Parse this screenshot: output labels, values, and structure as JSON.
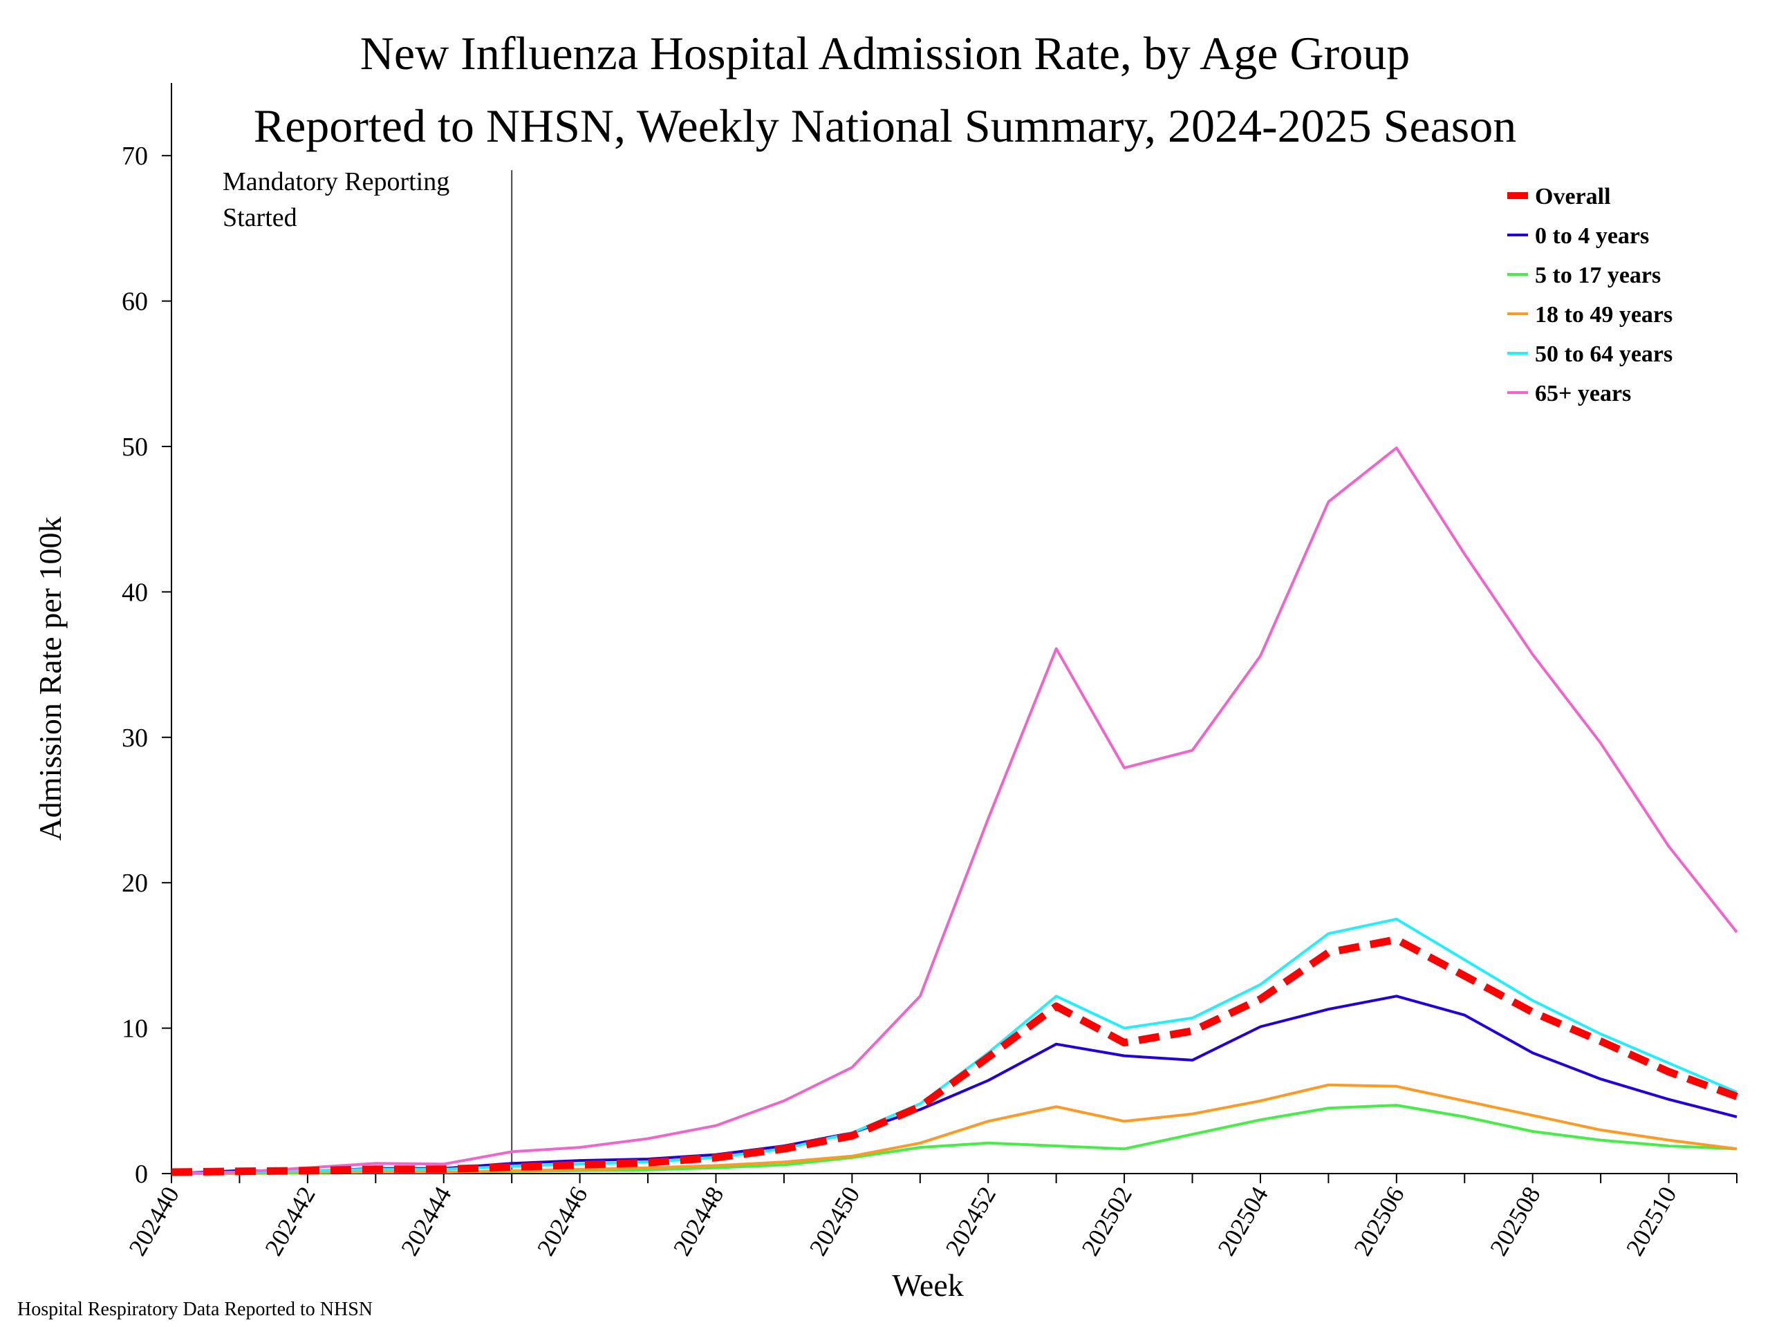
{
  "chart_data": {
    "type": "line",
    "title": "New Influenza Hospital Admission Rate, by Age Group",
    "subtitle": "Reported to NHSN, Weekly National Summary, 2024-2025 Season",
    "xlabel": "Week",
    "ylabel": "Admission Rate per 100k",
    "ylim": [
      0,
      75
    ],
    "yticks": [
      0,
      10,
      20,
      30,
      40,
      50,
      60,
      70
    ],
    "x": [
      "202440",
      "202441",
      "202442",
      "202443",
      "202444",
      "202445",
      "202446",
      "202447",
      "202448",
      "202449",
      "202450",
      "202451",
      "202452",
      "202501",
      "202502",
      "202503",
      "202504",
      "202505",
      "202506",
      "202507",
      "202508",
      "202509",
      "202510",
      "202511"
    ],
    "xtick_labels": [
      "202440",
      "202442",
      "202444",
      "202446",
      "202448",
      "202450",
      "202452",
      "202502",
      "202504",
      "202506",
      "202508",
      "202510"
    ],
    "grid": false,
    "legend_position": "top-right",
    "annotation": {
      "text_line1": "Mandatory Reporting",
      "text_line2": "Started",
      "x": "202445"
    },
    "series": [
      {
        "name": "Overall",
        "color": "#ff0000",
        "style": "dashed-thick",
        "values": [
          0.1,
          0.15,
          0.2,
          0.3,
          0.3,
          0.45,
          0.6,
          0.75,
          1.1,
          1.7,
          2.6,
          4.6,
          8.0,
          11.5,
          9.0,
          9.8,
          12.0,
          15.2,
          16.1,
          13.6,
          11.1,
          9.1,
          7.0,
          5.3
        ]
      },
      {
        "name": "0 to 4 years",
        "color": "#2200dd",
        "style": "solid",
        "values": [
          0.0,
          0.2,
          0.15,
          0.35,
          0.35,
          0.7,
          0.9,
          1.0,
          1.3,
          1.9,
          2.8,
          4.4,
          6.4,
          8.9,
          8.1,
          7.8,
          10.1,
          11.3,
          12.2,
          10.9,
          8.3,
          6.5,
          5.1,
          3.9
        ]
      },
      {
        "name": "5 to 17 years",
        "color": "#44ee44",
        "style": "solid",
        "values": [
          0.0,
          0.0,
          0.05,
          0.1,
          0.1,
          0.15,
          0.2,
          0.25,
          0.4,
          0.6,
          1.1,
          1.8,
          2.1,
          1.9,
          1.7,
          2.7,
          3.7,
          4.5,
          4.7,
          3.9,
          2.9,
          2.3,
          1.9,
          1.7
        ]
      },
      {
        "name": "18 to 49 years",
        "color": "#ff9922",
        "style": "solid",
        "values": [
          0.0,
          0.05,
          0.1,
          0.15,
          0.1,
          0.2,
          0.3,
          0.4,
          0.55,
          0.8,
          1.2,
          2.1,
          3.6,
          4.6,
          3.6,
          4.1,
          5.0,
          6.1,
          6.0,
          5.0,
          4.0,
          3.0,
          2.3,
          1.7
        ]
      },
      {
        "name": "50 to 64 years",
        "color": "#22eeff",
        "style": "solid",
        "values": [
          0.0,
          0.1,
          0.2,
          0.3,
          0.3,
          0.5,
          0.65,
          0.8,
          1.1,
          1.7,
          2.8,
          4.8,
          8.3,
          12.2,
          10.0,
          10.7,
          13.0,
          16.5,
          17.5,
          14.7,
          11.9,
          9.6,
          7.6,
          5.6
        ]
      },
      {
        "name": "65+ years",
        "color": "#ee66cc",
        "style": "solid",
        "values": [
          0.0,
          0.1,
          0.4,
          0.7,
          0.65,
          1.5,
          1.8,
          2.4,
          3.3,
          5.0,
          7.3,
          12.2,
          24.4,
          36.1,
          27.9,
          29.1,
          35.6,
          46.2,
          49.9,
          42.6,
          35.7,
          29.6,
          22.5,
          16.6
        ]
      }
    ]
  },
  "footer": "Hospital Respiratory Data Reported to NHSN"
}
